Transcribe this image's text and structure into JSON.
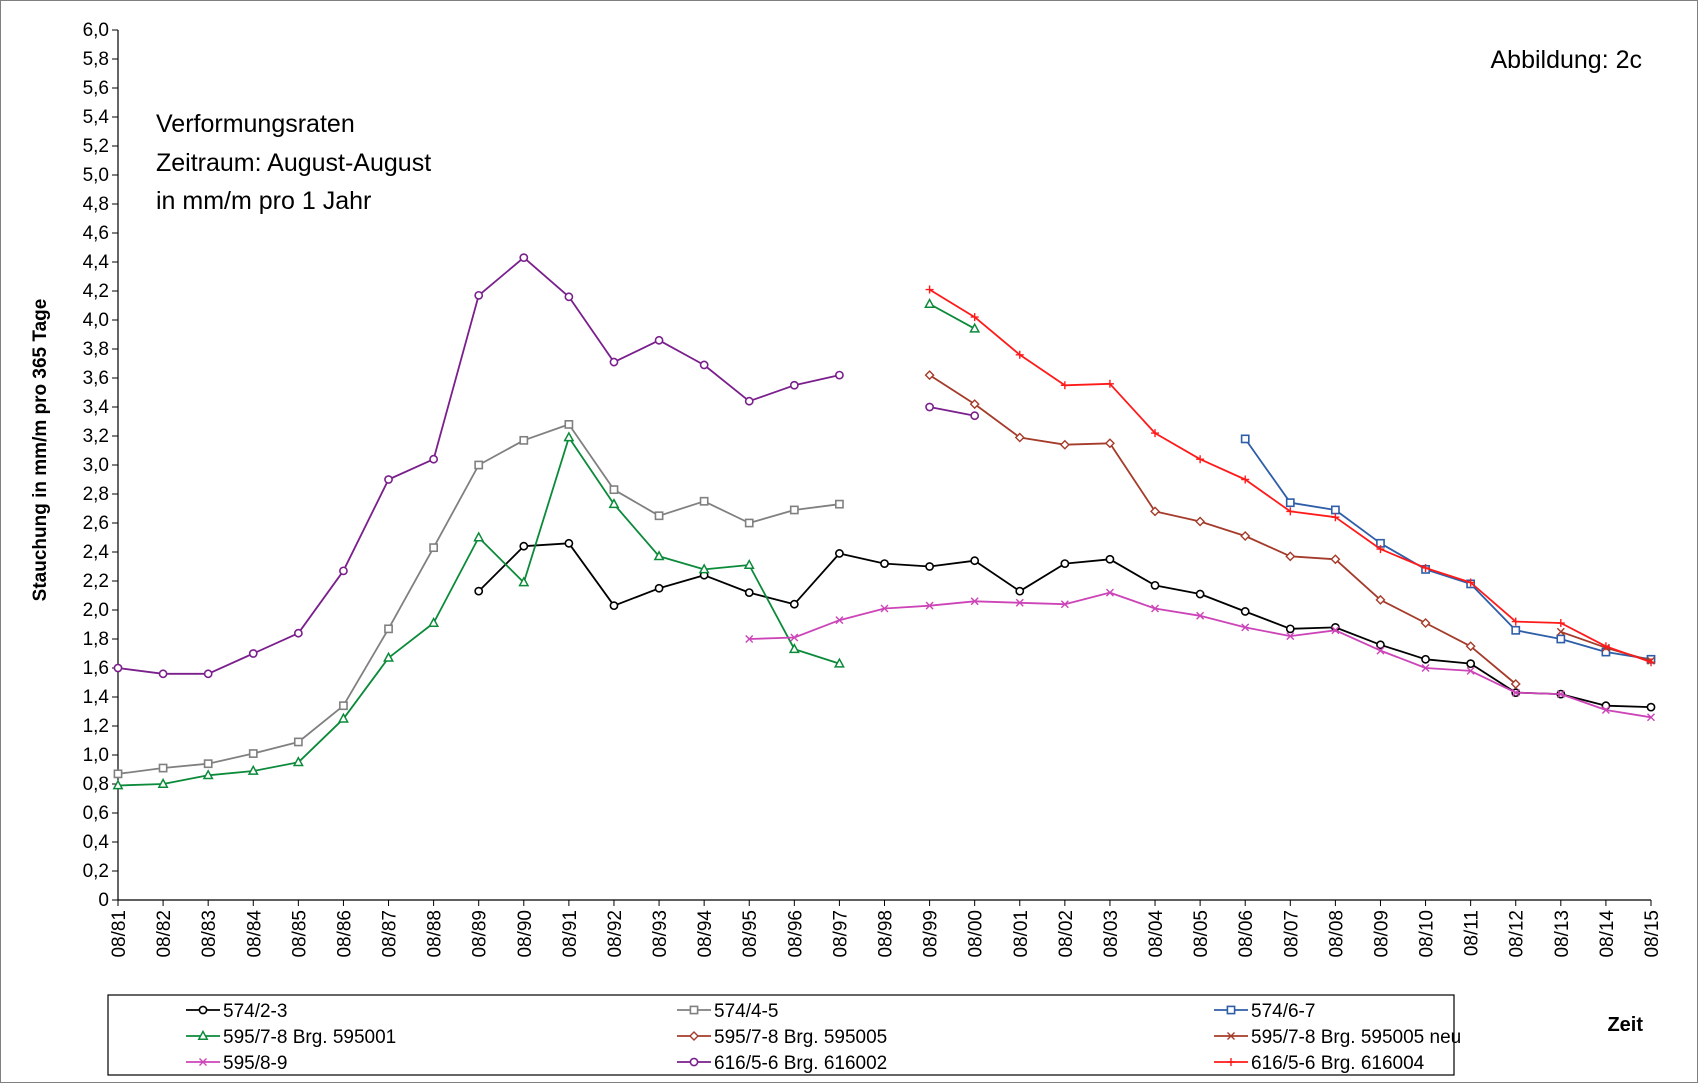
{
  "chart_data": {
    "type": "line",
    "title": "",
    "figure_label": "Abbildung:  2c",
    "annotation": [
      "Verformungsraten",
      "Zeitraum: August-August",
      "in mm/m pro 1 Jahr"
    ],
    "ylabel": "Stauchung in mm/m pro 365 Tage",
    "xlabel": "Zeit",
    "ylim": [
      0,
      6.0
    ],
    "y_ticks": [
      "0",
      "0,2",
      "0,4",
      "0,6",
      "0,8",
      "1,0",
      "1,2",
      "1,4",
      "1,6",
      "1,8",
      "2,0",
      "2,2",
      "2,4",
      "2,6",
      "2,8",
      "3,0",
      "3,2",
      "3,4",
      "3,6",
      "3,8",
      "4,0",
      "4,2",
      "4,4",
      "4,6",
      "4,8",
      "5,0",
      "5,2",
      "5,4",
      "5,6",
      "5,8",
      "6,0"
    ],
    "categories": [
      "08/81",
      "08/82",
      "08/83",
      "08/84",
      "08/85",
      "08/86",
      "08/87",
      "08/88",
      "08/89",
      "08/90",
      "08/91",
      "08/92",
      "08/93",
      "08/94",
      "08/95",
      "08/96",
      "08/97",
      "08/98",
      "08/99",
      "08/00",
      "08/01",
      "08/02",
      "08/03",
      "08/04",
      "08/05",
      "08/06",
      "08/07",
      "08/08",
      "08/09",
      "08/10",
      "08/11",
      "08/12",
      "08/13",
      "08/14",
      "08/15"
    ],
    "legend_position": "bottom",
    "series": [
      {
        "name": "574/2-3",
        "color": "#000000",
        "marker": "circle",
        "values": [
          null,
          null,
          null,
          null,
          null,
          null,
          null,
          null,
          2.13,
          2.44,
          2.46,
          2.03,
          2.15,
          2.24,
          2.12,
          2.04,
          2.39,
          2.32,
          2.3,
          2.34,
          2.13,
          2.32,
          2.35,
          2.17,
          2.11,
          1.99,
          1.87,
          1.88,
          1.76,
          1.66,
          1.63,
          1.43,
          1.42,
          1.34,
          1.33
        ]
      },
      {
        "name": "574/4-5",
        "color": "#808080",
        "marker": "square",
        "values": [
          0.87,
          0.91,
          0.94,
          1.01,
          1.09,
          1.34,
          1.87,
          2.43,
          3.0,
          3.17,
          3.28,
          2.83,
          2.65,
          2.75,
          2.6,
          2.69,
          2.73,
          null,
          null,
          null,
          null,
          null,
          null,
          null,
          null,
          null,
          null,
          null,
          null,
          null,
          null,
          null,
          null,
          null,
          null
        ]
      },
      {
        "name": "574/6-7",
        "color": "#2e5ea8",
        "marker": "square",
        "values": [
          null,
          null,
          null,
          null,
          null,
          null,
          null,
          null,
          null,
          null,
          null,
          null,
          null,
          null,
          null,
          null,
          null,
          null,
          null,
          null,
          null,
          null,
          null,
          null,
          null,
          3.18,
          2.74,
          2.69,
          2.46,
          2.28,
          2.18,
          1.86,
          1.8,
          1.71,
          1.66
        ]
      },
      {
        "name": "595/7-8 Brg. 595001",
        "color": "#0b8a3a",
        "marker": "triangle",
        "values": [
          0.79,
          0.8,
          0.86,
          0.89,
          0.95,
          1.25,
          1.67,
          1.91,
          2.5,
          2.19,
          3.19,
          2.73,
          2.37,
          2.28,
          2.31,
          1.73,
          1.63,
          null,
          4.11,
          3.94,
          null,
          null,
          null,
          null,
          null,
          null,
          null,
          null,
          null,
          null,
          null,
          null,
          null,
          null,
          null
        ]
      },
      {
        "name": "595/7-8 Brg. 595005",
        "color": "#a53b2a",
        "marker": "diamond",
        "values": [
          null,
          null,
          null,
          null,
          null,
          null,
          null,
          null,
          null,
          null,
          null,
          null,
          null,
          null,
          null,
          null,
          null,
          null,
          3.62,
          3.42,
          3.19,
          3.14,
          3.15,
          2.68,
          2.61,
          2.51,
          2.37,
          2.35,
          2.07,
          1.91,
          1.75,
          1.49,
          null,
          null,
          null
        ]
      },
      {
        "name": "595/7-8 Brg. 595005 neu",
        "color": "#a53b2a",
        "marker": "x",
        "values": [
          null,
          null,
          null,
          null,
          null,
          null,
          null,
          null,
          null,
          null,
          null,
          null,
          null,
          null,
          null,
          null,
          null,
          null,
          null,
          null,
          null,
          null,
          null,
          null,
          null,
          null,
          null,
          null,
          null,
          null,
          null,
          null,
          1.85,
          1.74,
          1.65
        ]
      },
      {
        "name": "595/8-9",
        "color": "#cc44b8",
        "marker": "x",
        "values": [
          null,
          null,
          null,
          null,
          null,
          null,
          null,
          null,
          null,
          null,
          null,
          null,
          null,
          null,
          1.8,
          1.81,
          1.93,
          2.01,
          2.03,
          2.06,
          2.05,
          2.04,
          2.12,
          2.01,
          1.96,
          1.88,
          1.82,
          1.86,
          1.72,
          1.6,
          1.58,
          1.43,
          1.42,
          1.31,
          1.26
        ]
      },
      {
        "name": "616/5-6 Brg. 616002",
        "color": "#7a1f8c",
        "marker": "circle",
        "values": [
          1.6,
          1.56,
          1.56,
          1.7,
          1.84,
          2.27,
          2.9,
          3.04,
          4.17,
          4.43,
          4.16,
          3.71,
          3.86,
          3.69,
          3.44,
          3.55,
          3.62,
          null,
          3.4,
          3.34,
          null,
          null,
          null,
          null,
          null,
          null,
          null,
          null,
          null,
          null,
          null,
          null,
          null,
          null,
          null
        ]
      },
      {
        "name": "616/5-6 Brg. 616004",
        "color": "#ff1a1a",
        "marker": "plus",
        "values": [
          null,
          null,
          null,
          null,
          null,
          null,
          null,
          null,
          null,
          null,
          null,
          null,
          null,
          null,
          null,
          null,
          null,
          null,
          4.21,
          4.02,
          3.76,
          3.55,
          3.56,
          3.22,
          3.04,
          2.9,
          2.68,
          2.64,
          2.42,
          2.29,
          2.19,
          1.92,
          1.91,
          1.75,
          1.64
        ]
      }
    ]
  }
}
